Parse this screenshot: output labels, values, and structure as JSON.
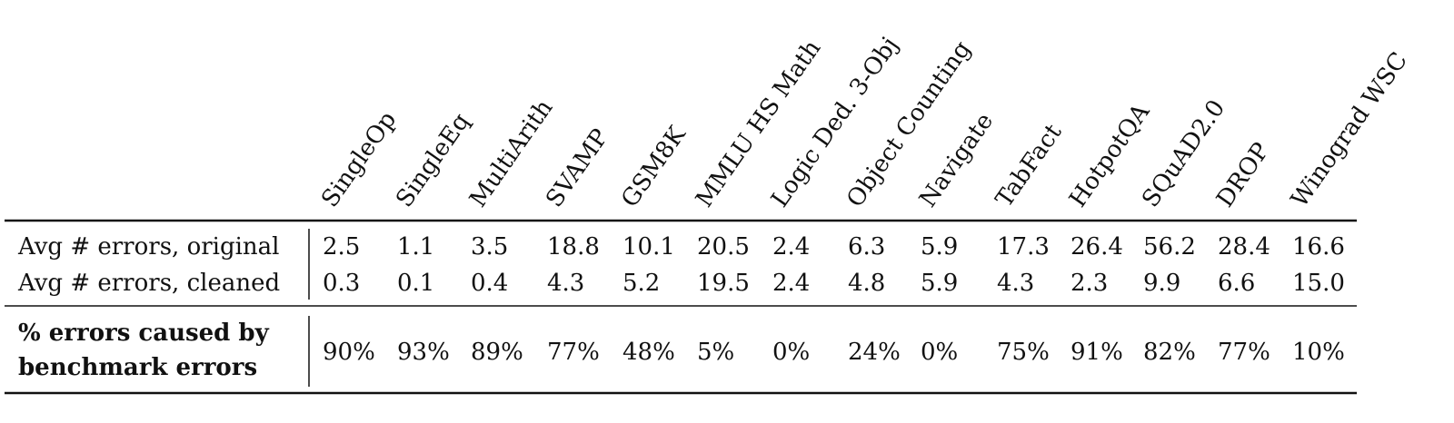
{
  "table": {
    "columns": [
      "SingleOp",
      "SingleEq",
      "MultiArith",
      "SVAMP",
      "GSM8K",
      "MMLU HS Math",
      "Logic Ded. 3-Obj",
      "Object Counting",
      "Navigate",
      "TabFact",
      "HotpotQA",
      "SQuAD2.0",
      "DROP",
      "Winograd WSC"
    ],
    "rows": [
      {
        "label": "Avg # errors, original",
        "cells": [
          "2.5",
          "1.1",
          "3.5",
          "18.8",
          "10.1",
          "20.5",
          "2.4",
          "6.3",
          "5.9",
          "17.3",
          "26.4",
          "56.2",
          "28.4",
          "16.6"
        ]
      },
      {
        "label": "Avg # errors, cleaned",
        "cells": [
          "0.3",
          "0.1",
          "0.4",
          "4.3",
          "5.2",
          "19.5",
          "2.4",
          "4.8",
          "5.9",
          "4.3",
          "2.3",
          "9.9",
          "6.6",
          "15.0"
        ]
      },
      {
        "label": [
          "% errors caused by",
          "benchmark errors"
        ],
        "cells": [
          "90%",
          "93%",
          "89%",
          "77%",
          "48%",
          "5%",
          "0%",
          "24%",
          "0%",
          "75%",
          "91%",
          "82%",
          "77%",
          "10%"
        ]
      }
    ]
  }
}
